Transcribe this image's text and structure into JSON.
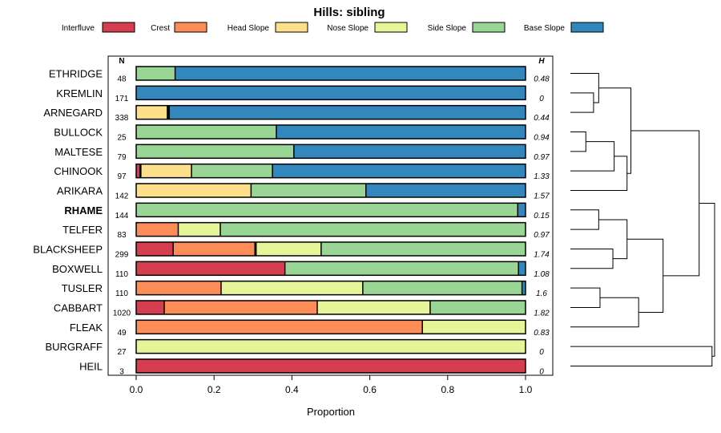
{
  "chart_data": {
    "type": "bar",
    "stacked": true,
    "orientation": "horizontal",
    "title": "Hills: sibling",
    "xlabel": "Proportion",
    "xlim": [
      0,
      1
    ],
    "xticks": [
      "0.0",
      "0.2",
      "0.4",
      "0.6",
      "0.8",
      "1.0"
    ],
    "n_header": "N",
    "h_header": "H",
    "legend": [
      {
        "name": "Interfluve",
        "color": "#d53e4f"
      },
      {
        "name": "Crest",
        "color": "#fc8d59"
      },
      {
        "name": "Head Slope",
        "color": "#fee08b"
      },
      {
        "name": "Nose Slope",
        "color": "#e6f598"
      },
      {
        "name": "Side Slope",
        "color": "#99d594"
      },
      {
        "name": "Base Slope",
        "color": "#3288bd"
      }
    ],
    "rows": [
      {
        "label": "ETHRIDGE",
        "bold": false,
        "n": "48",
        "h": "0.48",
        "values": [
          0,
          0,
          0,
          0,
          0.1,
          0.9
        ]
      },
      {
        "label": "KREMLIN",
        "bold": false,
        "n": "171",
        "h": "0",
        "values": [
          0,
          0,
          0,
          0,
          0,
          1.0
        ]
      },
      {
        "label": "ARNEGARD",
        "bold": false,
        "n": "338",
        "h": "0.44",
        "values": [
          0,
          0,
          0.08,
          0.003,
          0.002,
          0.915
        ]
      },
      {
        "label": "BULLOCK",
        "bold": false,
        "n": "25",
        "h": "0.94",
        "values": [
          0,
          0,
          0,
          0,
          0.36,
          0.64
        ]
      },
      {
        "label": "MALTESE",
        "bold": false,
        "n": "79",
        "h": "0.97",
        "values": [
          0,
          0,
          0,
          0,
          0.405,
          0.595
        ]
      },
      {
        "label": "CHINOOK",
        "bold": false,
        "n": "97",
        "h": "1.33",
        "values": [
          0.01,
          0.002,
          0.13,
          0,
          0.208,
          0.65
        ]
      },
      {
        "label": "ARIKARA",
        "bold": false,
        "n": "142",
        "h": "1.57",
        "values": [
          0,
          0,
          0.295,
          0,
          0.295,
          0.41
        ]
      },
      {
        "label": "RHAME",
        "bold": true,
        "n": "144",
        "h": "0.15",
        "values": [
          0,
          0,
          0,
          0,
          0.98,
          0.02
        ]
      },
      {
        "label": "TELFER",
        "bold": false,
        "n": "83",
        "h": "0.97",
        "values": [
          0,
          0.108,
          0,
          0.108,
          0.784,
          0
        ]
      },
      {
        "label": "BLACKSHEEP",
        "bold": false,
        "n": "299",
        "h": "1.74",
        "values": [
          0.095,
          0.21,
          0.003,
          0.167,
          0.525,
          0
        ]
      },
      {
        "label": "BOXWELL",
        "bold": false,
        "n": "110",
        "h": "1.08",
        "values": [
          0.382,
          0,
          0,
          0,
          0.6,
          0.018
        ]
      },
      {
        "label": "TUSLER",
        "bold": false,
        "n": "110",
        "h": "1.6",
        "values": [
          0,
          0.218,
          0,
          0.364,
          0.409,
          0.009
        ]
      },
      {
        "label": "CABBART",
        "bold": false,
        "n": "1020",
        "h": "1.82",
        "values": [
          0.072,
          0.393,
          0,
          0.29,
          0.245,
          0
        ]
      },
      {
        "label": "FLEAK",
        "bold": false,
        "n": "49",
        "h": "0.83",
        "values": [
          0,
          0.735,
          0,
          0.265,
          0,
          0
        ]
      },
      {
        "label": "BURGRAFF",
        "bold": false,
        "n": "27",
        "h": "0",
        "values": [
          0,
          0,
          0,
          1.0,
          0,
          0
        ]
      },
      {
        "label": "HEIL",
        "bold": false,
        "n": "3",
        "h": "0",
        "values": [
          1.0,
          0,
          0,
          0,
          0,
          0
        ]
      }
    ],
    "dendrogram": {
      "merges": [
        {
          "a": 1,
          "b": 2,
          "height": 0.18
        },
        {
          "a": 0,
          "b": "m0",
          "height": 0.22
        },
        {
          "a": 3,
          "b": 4,
          "height": 0.12
        },
        {
          "a": "m2",
          "b": 5,
          "height": 0.34
        },
        {
          "a": "m3",
          "b": 6,
          "height": 0.44
        },
        {
          "a": "m1",
          "b": "m4",
          "height": 0.47
        },
        {
          "a": 7,
          "b": 8,
          "height": 0.22
        },
        {
          "a": 9,
          "b": 10,
          "height": 0.33
        },
        {
          "a": "m6",
          "b": "m7",
          "height": 0.44
        },
        {
          "a": 11,
          "b": 12,
          "height": 0.23
        },
        {
          "a": "m9",
          "b": 13,
          "height": 0.53
        },
        {
          "a": "m8",
          "b": "m10",
          "height": 0.72
        },
        {
          "a": "m5",
          "b": "m11",
          "height": 1.0
        },
        {
          "a": 14,
          "b": 15,
          "height": 1.1
        },
        {
          "a": "m12",
          "b": "m13",
          "height": 1.12
        }
      ],
      "max_height": 1.12
    }
  }
}
